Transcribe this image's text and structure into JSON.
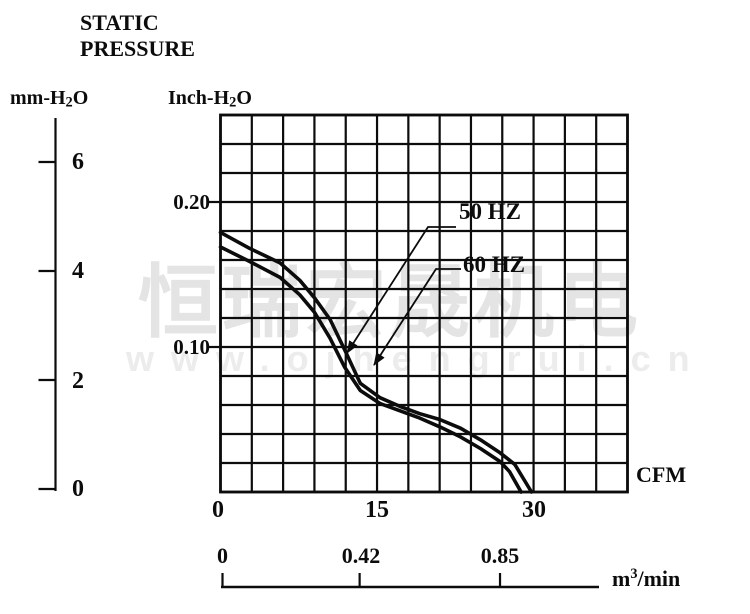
{
  "title": {
    "line1": "STATIC",
    "line2": "PRESSURE"
  },
  "axes": {
    "left_unit": {
      "prefix": "mm-H",
      "sub": "2",
      "suffix": "O"
    },
    "right_unit": {
      "prefix": "Inch-H",
      "sub": "2",
      "suffix": "O"
    },
    "mm_ticks": [
      {
        "label": "6"
      },
      {
        "label": "4"
      },
      {
        "label": "2"
      },
      {
        "label": "0"
      }
    ],
    "inch_ticks": [
      {
        "label": "0.20"
      },
      {
        "label": "0.10"
      }
    ],
    "cfm_ticks": [
      {
        "label": "0"
      },
      {
        "label": "15"
      },
      {
        "label": "30"
      }
    ],
    "cfm_unit": "CFM",
    "m3_ticks": [
      {
        "label": "0"
      },
      {
        "label": "0.42"
      },
      {
        "label": "0.85"
      }
    ],
    "m3_unit": {
      "prefix": "m",
      "sup": "3",
      "suffix": "/min"
    }
  },
  "curve_labels": [
    {
      "label": "50 HZ"
    },
    {
      "label": "60 HZ"
    }
  ],
  "watermark": {
    "line1": "恒瑞宏晟机电",
    "line2": "www.ojhengrui.cn"
  },
  "colors": {
    "ink": "#0c0c0c",
    "watermark_cn": "#e4e4e4",
    "watermark_url": "#ececec"
  },
  "chart_data": {
    "type": "line",
    "title": "STATIC PRESSURE",
    "grid": true,
    "legend_position": "inline-labels-with-arrows",
    "x_axis": {
      "label": "CFM",
      "ticks": [
        0,
        15,
        30
      ],
      "range": [
        0,
        39
      ]
    },
    "x_axis_secondary": {
      "label": "m3/min",
      "ticks": [
        0,
        0.42,
        0.85
      ]
    },
    "y_axis_left": {
      "label": "mm-H2O",
      "ticks": [
        6,
        4,
        2,
        0
      ],
      "range": [
        0,
        6.9
      ]
    },
    "y_axis_right": {
      "label": "Inch-H2O",
      "ticks": [
        0.2,
        0.1
      ],
      "range": [
        0,
        0.26
      ]
    },
    "series": [
      {
        "name": "50 HZ",
        "units": {
          "x": "CFM",
          "y": "Inch-H2O"
        },
        "points": [
          [
            0,
            0.179
          ],
          [
            2.8,
            0.168
          ],
          [
            5.7,
            0.158
          ],
          [
            7.6,
            0.146
          ],
          [
            9,
            0.134
          ],
          [
            10.5,
            0.119
          ],
          [
            11.9,
            0.098
          ],
          [
            13.4,
            0.075
          ],
          [
            15.3,
            0.065
          ],
          [
            17.2,
            0.059
          ],
          [
            19.1,
            0.054
          ],
          [
            21,
            0.05
          ],
          [
            23,
            0.044
          ],
          [
            24.9,
            0.036
          ],
          [
            26.8,
            0.027
          ],
          [
            28.2,
            0.019
          ],
          [
            29.8,
            0
          ]
        ]
      },
      {
        "name": "60 HZ",
        "units": {
          "x": "CFM",
          "y": "Inch-H2O"
        },
        "points": [
          [
            0,
            0.169
          ],
          [
            2.8,
            0.159
          ],
          [
            5.7,
            0.148
          ],
          [
            7.6,
            0.136
          ],
          [
            9,
            0.124
          ],
          [
            10.5,
            0.106
          ],
          [
            11.9,
            0.086
          ],
          [
            13.4,
            0.07
          ],
          [
            15.3,
            0.061
          ],
          [
            17.2,
            0.056
          ],
          [
            19.1,
            0.051
          ],
          [
            21,
            0.045
          ],
          [
            23,
            0.038
          ],
          [
            24.9,
            0.03
          ],
          [
            26.8,
            0.021
          ],
          [
            27.7,
            0.014
          ],
          [
            28.8,
            0
          ]
        ]
      }
    ]
  }
}
